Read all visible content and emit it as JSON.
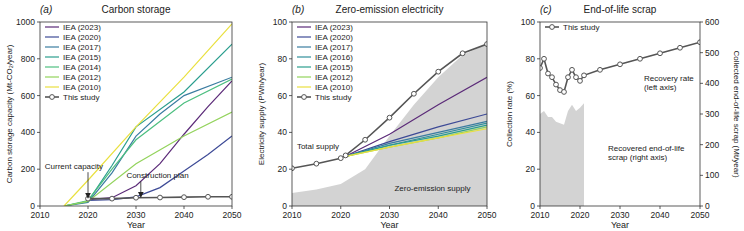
{
  "chart_data": [
    {
      "type": "line",
      "panel": "(a)",
      "title": "Carbon storage",
      "xlabel": "Year",
      "ylabel": "Carbon storage capacity (Mt-CO₂/year)",
      "xlim": [
        2010,
        2050
      ],
      "xticks": [
        2010,
        2020,
        2030,
        2040,
        2050
      ],
      "ylim": [
        0,
        1000
      ],
      "yticks": [
        0,
        200,
        400,
        600,
        800,
        1000
      ],
      "grid": false,
      "legend": "upper left",
      "series": [
        {
          "name": "IEA (2023)",
          "color": "#5b2a78",
          "x": [
            2020,
            2025,
            2030,
            2035,
            2040,
            2045,
            2050
          ],
          "values": [
            35,
            45,
            110,
            230,
            390,
            540,
            680
          ]
        },
        {
          "name": "IEA (2020)",
          "color": "#3d4a96",
          "x": [
            2020,
            2025,
            2030,
            2035,
            2040,
            2045,
            2050
          ],
          "values": [
            30,
            35,
            50,
            100,
            190,
            280,
            380
          ]
        },
        {
          "name": "IEA (2017)",
          "color": "#3a7ca0",
          "x": [
            2015,
            2020,
            2025,
            2030,
            2035,
            2040,
            2050
          ],
          "values": [
            0,
            20,
            180,
            380,
            500,
            600,
            700
          ]
        },
        {
          "name": "IEA (2015)",
          "color": "#2a9e8e",
          "x": [
            2015,
            2020,
            2025,
            2030,
            2040,
            2050
          ],
          "values": [
            0,
            25,
            220,
            430,
            620,
            880
          ]
        },
        {
          "name": "IEA (2014)",
          "color": "#4dbf80",
          "x": [
            2015,
            2020,
            2025,
            2030,
            2040,
            2050
          ],
          "values": [
            0,
            30,
            200,
            360,
            560,
            690
          ]
        },
        {
          "name": "IEA (2012)",
          "color": "#93d35c",
          "x": [
            2015,
            2020,
            2030,
            2040,
            2050
          ],
          "values": [
            0,
            25,
            230,
            380,
            510
          ]
        },
        {
          "name": "IEA (2010)",
          "color": "#e9e03f",
          "x": [
            2015,
            2020,
            2030,
            2040,
            2050
          ],
          "values": [
            0,
            140,
            430,
            700,
            990
          ]
        },
        {
          "name": "This study",
          "color": "#555555",
          "marker": "circle",
          "x": [
            2020,
            2025,
            2030,
            2035,
            2040,
            2045,
            2050
          ],
          "values": [
            40,
            40,
            45,
            46,
            48,
            50,
            50
          ]
        }
      ],
      "annotations": [
        {
          "text": "Current capacity",
          "x": 2011,
          "y": 200,
          "arrow_x": 2020,
          "arrow_y": 40
        },
        {
          "text": "Construction plan",
          "x": 2028,
          "y": 150,
          "arrow_x": 2031,
          "arrow_y": 45
        }
      ]
    },
    {
      "type": "line",
      "panel": "(b)",
      "title": "Zero-emission electricity",
      "xlabel": "Year",
      "ylabel": "Electricity supply (PWh/year)",
      "xlim": [
        2010,
        2050
      ],
      "xticks": [
        2010,
        2020,
        2030,
        2040,
        2050
      ],
      "ylim": [
        0,
        100
      ],
      "yticks": [
        0,
        20,
        40,
        60,
        80,
        100
      ],
      "grid": false,
      "legend": "upper left",
      "series": [
        {
          "type": "area",
          "color": "#d3d3d3",
          "x": [
            2010,
            2015,
            2020,
            2025,
            2030,
            2035,
            2040,
            2045,
            2050
          ],
          "values": [
            7,
            9,
            12,
            20,
            38,
            55,
            70,
            82,
            88
          ]
        },
        {
          "name": "IEA (2023)",
          "color": "#5b2a78",
          "x": [
            2021,
            2030,
            2040,
            2050
          ],
          "values": [
            27,
            39,
            55,
            70
          ]
        },
        {
          "name": "IEA (2020)",
          "color": "#3d4a96",
          "x": [
            2021,
            2030,
            2040,
            2050
          ],
          "values": [
            27,
            35,
            43,
            50
          ]
        },
        {
          "name": "IEA (2017)",
          "color": "#3a7ca0",
          "x": [
            2021,
            2030,
            2040,
            2050
          ],
          "values": [
            27,
            34,
            40,
            46
          ]
        },
        {
          "name": "IEA (2016)",
          "color": "#2f8f9a",
          "x": [
            2021,
            2030,
            2040,
            2050
          ],
          "values": [
            27,
            33,
            39,
            45
          ]
        },
        {
          "name": "IEA (2015)",
          "color": "#2a9e8e",
          "x": [
            2021,
            2030,
            2040,
            2050
          ],
          "values": [
            27,
            33,
            38,
            44
          ]
        },
        {
          "name": "IEA (2012)",
          "color": "#93d35c",
          "x": [
            2021,
            2030,
            2040,
            2050
          ],
          "values": [
            27,
            32,
            37,
            43
          ]
        },
        {
          "name": "IEA (2010)",
          "color": "#e9e03f",
          "x": [
            2021,
            2030,
            2040,
            2050
          ],
          "values": [
            27,
            32,
            37,
            42
          ]
        },
        {
          "name": "This study",
          "color": "#555555",
          "marker": "circle",
          "x": [
            2010,
            2015,
            2020,
            2021,
            2025,
            2030,
            2035,
            2040,
            2045,
            2050
          ],
          "values": [
            20.5,
            23,
            26,
            27.5,
            36,
            48,
            61,
            73,
            83,
            88
          ]
        }
      ],
      "annotations": [
        {
          "text": "Total supply",
          "x": 2011,
          "y": 31
        },
        {
          "text": "Zero-emission supply",
          "x": 2031,
          "y": 8
        }
      ]
    },
    {
      "type": "line",
      "panel": "(c)",
      "title": "End-of-life scrap",
      "xlabel": "Year",
      "ylabel": "Collection rate (%)",
      "y2label": "Collected end-of-life scrap (Mt/year)",
      "xlim": [
        2010,
        2050
      ],
      "xticks": [
        2010,
        2020,
        2030,
        2040,
        2050
      ],
      "ylim": [
        0,
        100
      ],
      "yticks": [
        0,
        20,
        40,
        60,
        80,
        100
      ],
      "y2lim": [
        0,
        600
      ],
      "y2ticks": [
        0,
        100,
        200,
        300,
        400,
        500,
        600
      ],
      "grid": false,
      "legend": "upper left",
      "series": [
        {
          "type": "area",
          "axis": "y2",
          "color": "#d3d3d3",
          "x": [
            2010,
            2011,
            2012,
            2013,
            2014,
            2015,
            2016,
            2017,
            2018,
            2019,
            2020,
            2021
          ],
          "values": [
            300,
            310,
            290,
            290,
            275,
            270,
            265,
            310,
            330,
            310,
            320,
            335
          ]
        },
        {
          "name": "This study",
          "color": "#555555",
          "marker": "circle",
          "x": [
            2010,
            2011,
            2012,
            2013,
            2014,
            2015,
            2016,
            2017,
            2018,
            2019,
            2020,
            2021,
            2025,
            2030,
            2035,
            2040,
            2045,
            2050
          ],
          "values": [
            75,
            80,
            72,
            70,
            66,
            63,
            62,
            70,
            74,
            70,
            68,
            71,
            74,
            77,
            80,
            83,
            86,
            89
          ]
        }
      ],
      "annotations": [
        {
          "text": "Recovery rate\n(left axis)",
          "x": 2036,
          "y": 68
        },
        {
          "text": "Recovered end-of-life\nscrap (right axis)",
          "x": 2027,
          "y": 30
        }
      ]
    }
  ]
}
